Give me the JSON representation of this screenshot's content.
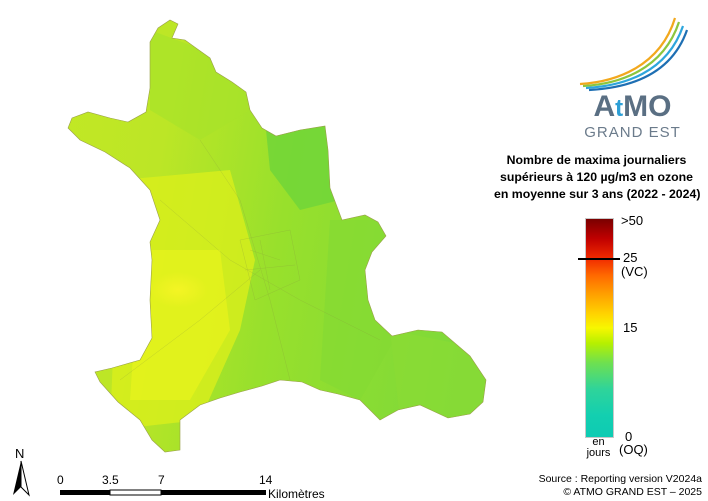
{
  "legend": {
    "title_lines": [
      "Nombre de maxima journaliers",
      "supérieurs à 120 µg/m3 en ozone",
      "en moyenne sur 3 ans (2022 - 2024)"
    ],
    "tick_max": ">50",
    "tick_25": "25",
    "tick_25_note": "(VC)",
    "tick_15": "15",
    "tick_0": "0",
    "tick_0_note": "(OQ)",
    "unit_line1": "en",
    "unit_line2": "jours",
    "colors": [
      "#7a0000",
      "#f02a00",
      "#ff9d00",
      "#f7f700",
      "#6ee050",
      "#0ecbb3"
    ]
  },
  "logo": {
    "brand_a": "A",
    "brand_t": "t",
    "brand_mo": "MO",
    "sub": "GRAND EST"
  },
  "north": "N",
  "scale": {
    "labels": [
      "0",
      "3.5",
      "7",
      "14"
    ],
    "unit": "Kilomètres"
  },
  "source": {
    "line1": "Source : Reporting version V2024a",
    "line2": "© ATMO GRAND EST – 2025"
  }
}
